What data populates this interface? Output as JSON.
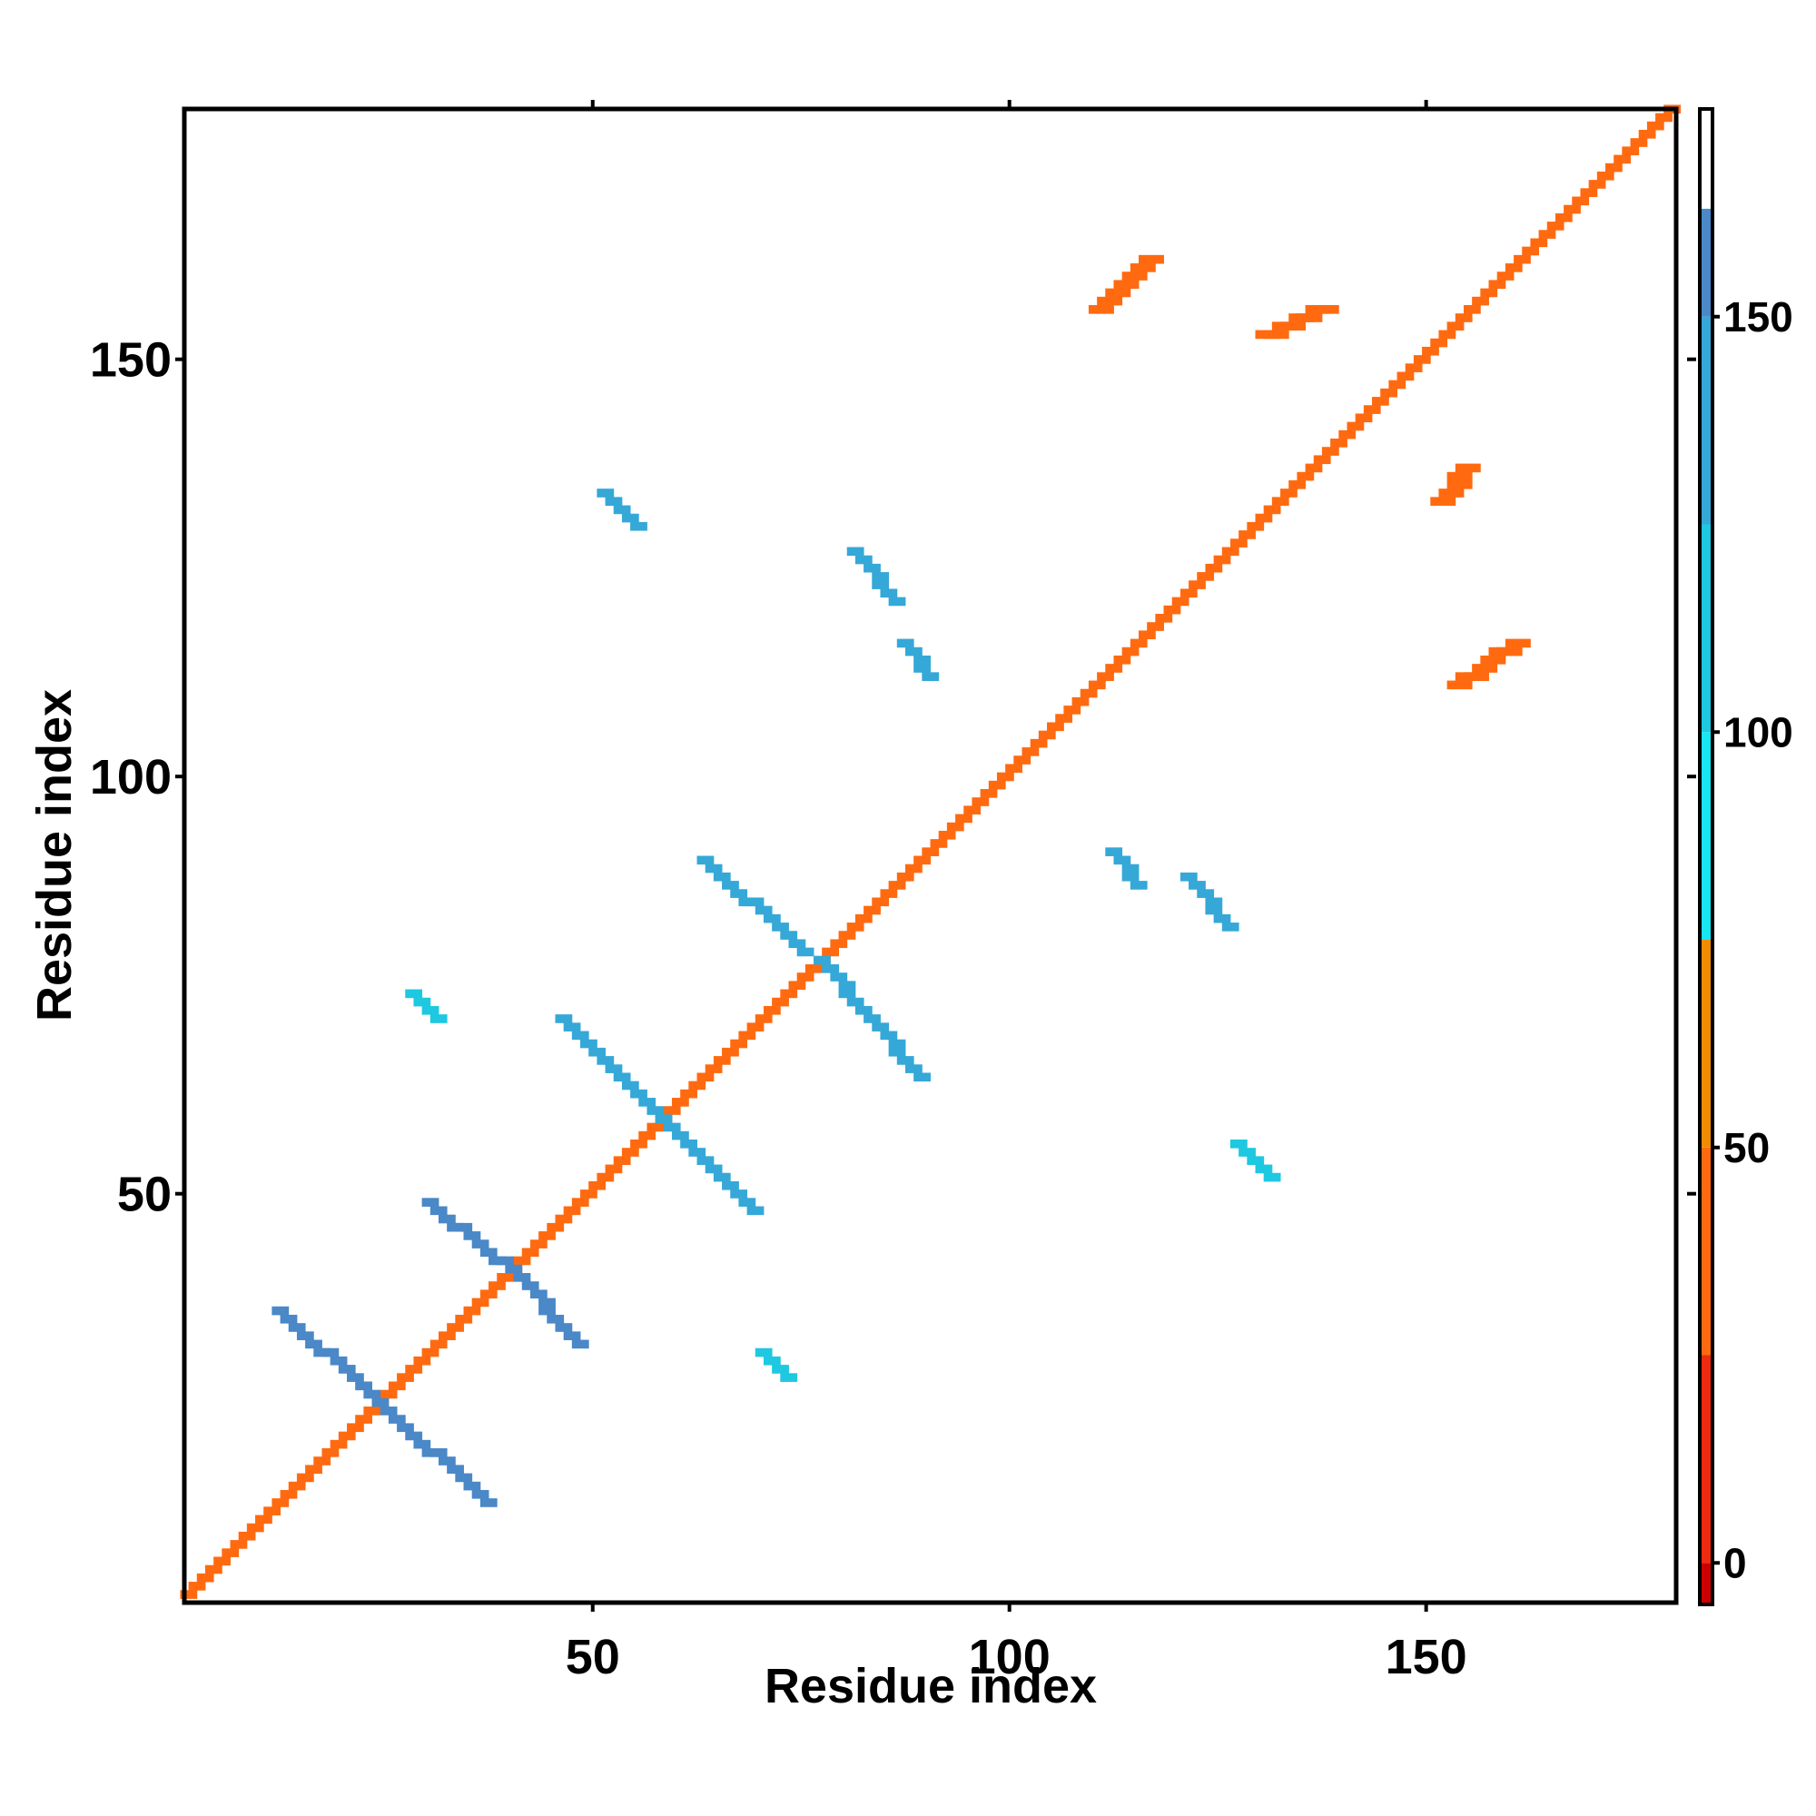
{
  "chart_data": {
    "type": "heatmap",
    "title": "",
    "xlabel": "Residue index",
    "ylabel": "Residue index",
    "xlim": [
      1,
      180
    ],
    "ylim": [
      1,
      180
    ],
    "x_ticks": [
      50,
      100,
      150
    ],
    "y_ticks": [
      50,
      100,
      150
    ],
    "colorbar": {
      "ticks": [
        0,
        50,
        100,
        150
      ],
      "range": [
        -5,
        175
      ],
      "bands": [
        {
          "from": -5,
          "to": 0,
          "color": "#cc0000"
        },
        {
          "from": 0,
          "to": 25,
          "color": "#ee2a10"
        },
        {
          "from": 25,
          "to": 50,
          "color": "#ff6a10"
        },
        {
          "from": 50,
          "to": 75,
          "color": "#f08c00"
        },
        {
          "from": 75,
          "to": 100,
          "color": "#18e6f0"
        },
        {
          "from": 100,
          "to": 125,
          "color": "#1ec8e0"
        },
        {
          "from": 125,
          "to": 150,
          "color": "#35a8d8"
        },
        {
          "from": 150,
          "to": 163,
          "color": "#4a88c8"
        },
        {
          "from": 163,
          "to": 175,
          "color": "#ffffff"
        }
      ]
    },
    "grid": false,
    "segments": [
      {
        "from": [
          2,
          2
        ],
        "to": [
          180,
          180
        ],
        "width": 2,
        "color": "#ff6a10"
      },
      {
        "from": [
          13,
          36
        ],
        "to": [
          24,
          26
        ],
        "width": 2,
        "color": "#4a88c8"
      },
      {
        "from": [
          25,
          25
        ],
        "to": [
          38,
          13
        ],
        "width": 2,
        "color": "#4a88c8"
      },
      {
        "from": [
          31,
          49
        ],
        "to": [
          39,
          42
        ],
        "width": 2,
        "color": "#4a88c8"
      },
      {
        "from": [
          40,
          42
        ],
        "to": [
          49,
          32
        ],
        "width": 2,
        "color": "#4a88c8"
      },
      {
        "from": [
          47,
          71
        ],
        "to": [
          58,
          60
        ],
        "width": 2,
        "color": "#35a8d8"
      },
      {
        "from": [
          59,
          59
        ],
        "to": [
          70,
          48
        ],
        "width": 2,
        "color": "#35a8d8"
      },
      {
        "from": [
          64,
          90
        ],
        "to": [
          76,
          79
        ],
        "width": 2,
        "color": "#35a8d8"
      },
      {
        "from": [
          78,
          78
        ],
        "to": [
          90,
          64
        ],
        "width": 2,
        "color": "#35a8d8"
      },
      {
        "from": [
          82,
          127
        ],
        "to": [
          87,
          121
        ],
        "width": 2,
        "color": "#35a8d8"
      },
      {
        "from": [
          88,
          116
        ],
        "to": [
          91,
          112
        ],
        "width": 2,
        "color": "#35a8d8"
      },
      {
        "from": [
          52,
          134
        ],
        "to": [
          56,
          130
        ],
        "width": 2,
        "color": "#35a8d8"
      },
      {
        "from": [
          113,
          91
        ],
        "to": [
          116,
          87
        ],
        "width": 2,
        "color": "#35a8d8"
      },
      {
        "from": [
          122,
          88
        ],
        "to": [
          127,
          82
        ],
        "width": 2,
        "color": "#35a8d8"
      },
      {
        "from": [
          128,
          56
        ],
        "to": [
          132,
          52
        ],
        "width": 2,
        "color": "#1ec8e0"
      },
      {
        "from": [
          29,
          74
        ],
        "to": [
          32,
          71
        ],
        "width": 2,
        "color": "#1ec8e0"
      },
      {
        "from": [
          71,
          31
        ],
        "to": [
          74,
          28
        ],
        "width": 2,
        "color": "#1ec8e0"
      },
      {
        "from": [
          111,
          156
        ],
        "to": [
          117,
          162
        ],
        "width": 3,
        "color": "#ff6a10"
      },
      {
        "from": [
          131,
          153
        ],
        "to": [
          138,
          156
        ],
        "width": 3,
        "color": "#ff6a10"
      },
      {
        "from": [
          152,
          133
        ],
        "to": [
          155,
          137
        ],
        "width": 3,
        "color": "#ff6a10"
      },
      {
        "from": [
          154,
          111
        ],
        "to": [
          161,
          116
        ],
        "width": 3,
        "color": "#ff6a10"
      }
    ]
  }
}
